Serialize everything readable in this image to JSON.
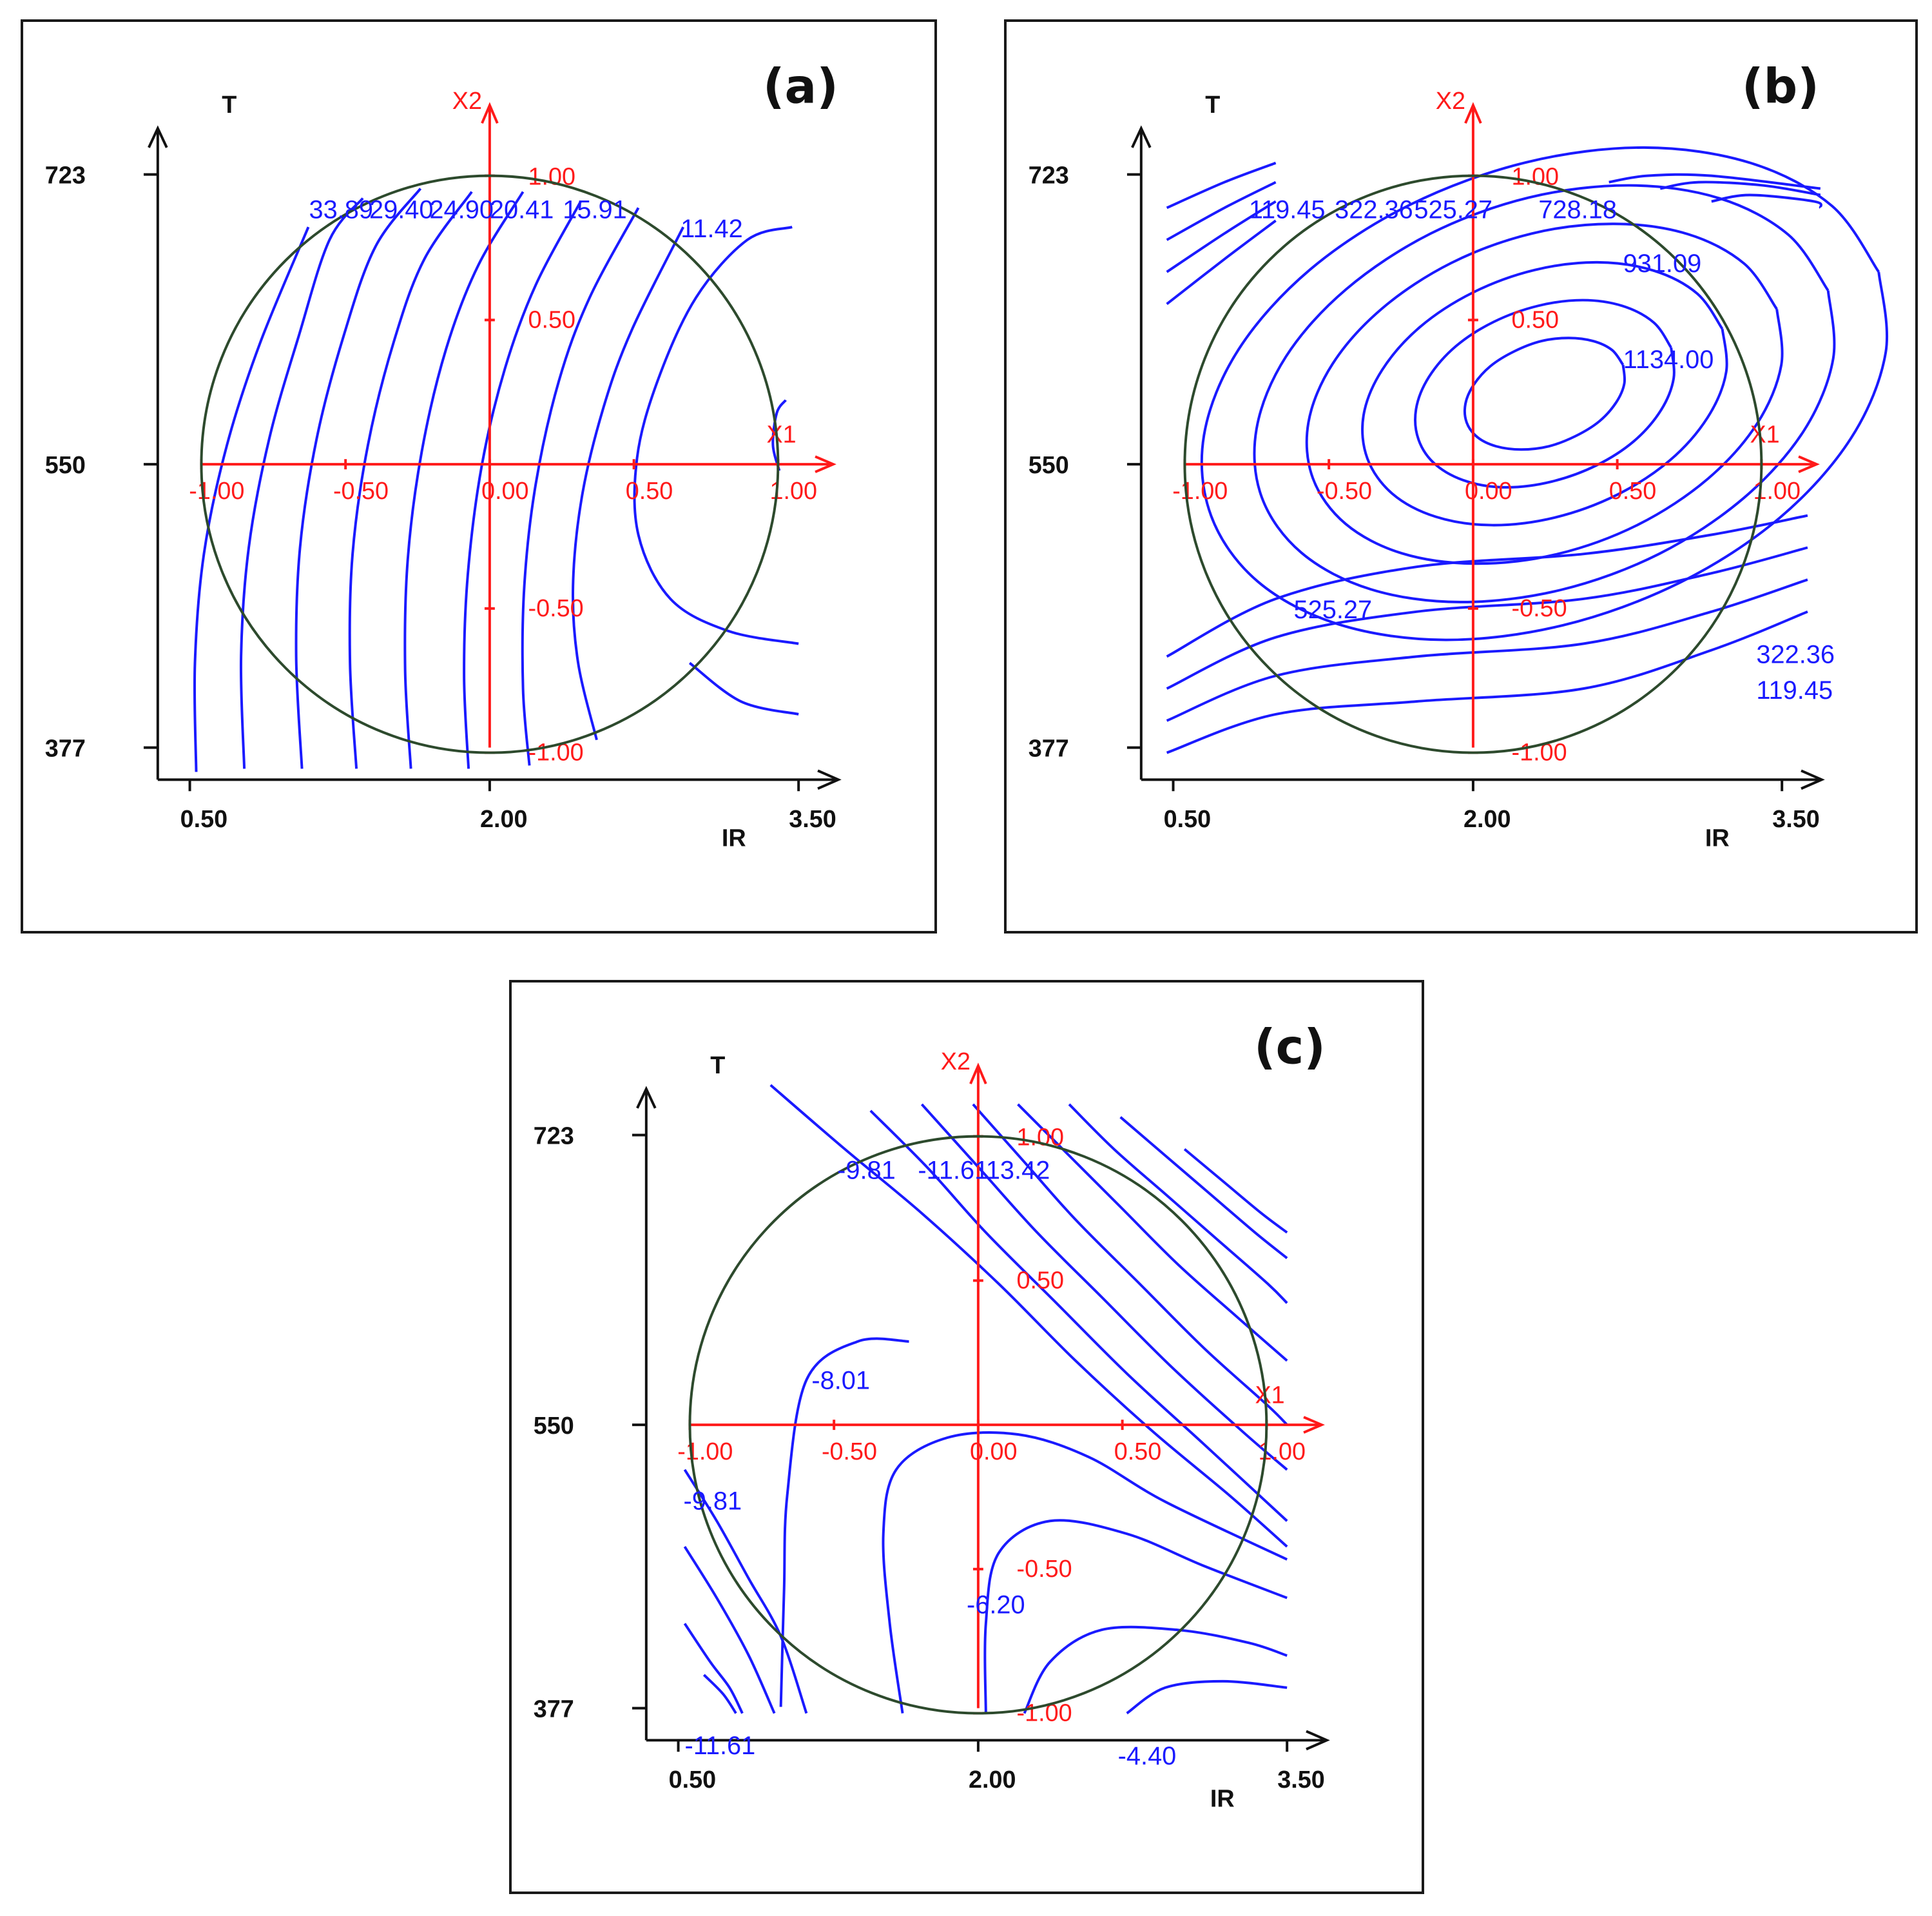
{
  "colors": {
    "contour": "#1a1aff",
    "coded_axes": "#ff1a1a",
    "region_circle": "#2d4a2d",
    "axes": "#111111"
  },
  "chart_data": [
    {
      "panel_label": "(a)",
      "type": "contour",
      "xlabel": "IR",
      "ylabel": "T",
      "x_ticks": [
        "0.50",
        "2.00",
        "3.50"
      ],
      "y_ticks": [
        "723",
        "550",
        "377"
      ],
      "xlim": [
        0.5,
        3.5
      ],
      "ylim": [
        377,
        723
      ],
      "coded_axes": {
        "x_name": "X1",
        "y_name": "X2",
        "x_ticks": [
          "-1.00",
          "-0.50",
          "0.00",
          "0.50",
          "1.00"
        ],
        "y_ticks": [
          "1.00",
          "0.50",
          "-0.50",
          "-1.00"
        ]
      },
      "contour_labels": [
        "33.89",
        "29.40",
        "24.90",
        "20.41",
        "15.91",
        "11.42"
      ]
    },
    {
      "panel_label": "(b)",
      "type": "contour",
      "xlabel": "IR",
      "ylabel": "T",
      "x_ticks": [
        "0.50",
        "2.00",
        "3.50"
      ],
      "y_ticks": [
        "723",
        "550",
        "377"
      ],
      "xlim": [
        0.5,
        3.5
      ],
      "ylim": [
        377,
        723
      ],
      "coded_axes": {
        "x_name": "X1",
        "y_name": "X2",
        "x_ticks": [
          "-1.00",
          "-0.50",
          "0.00",
          "0.50",
          "1.00"
        ],
        "y_ticks": [
          "1.00",
          "0.50",
          "-0.50",
          "-1.00"
        ]
      },
      "contour_labels": [
        "119.45",
        "322.36",
        "525.27",
        "728.18",
        "931.09",
        "1134.00",
        "525.27",
        "322.36",
        "119.45"
      ]
    },
    {
      "panel_label": "(c)",
      "type": "contour",
      "xlabel": "IR",
      "ylabel": "T",
      "x_ticks": [
        "0.50",
        "2.00",
        "3.50"
      ],
      "y_ticks": [
        "723",
        "550",
        "377"
      ],
      "xlim": [
        0.5,
        3.5
      ],
      "ylim": [
        377,
        723
      ],
      "coded_axes": {
        "x_name": "X1",
        "y_name": "X2",
        "x_ticks": [
          "-1.00",
          "-0.50",
          "0.00",
          "0.50",
          "1.00"
        ],
        "y_ticks": [
          "1.00",
          "0.50",
          "-0.50",
          "-1.00"
        ]
      },
      "contour_labels": [
        "-9.81",
        "-11.61",
        "13.42",
        "-8.01",
        "-9.81",
        "-6.20",
        "-11.61",
        "-4.40"
      ]
    }
  ]
}
